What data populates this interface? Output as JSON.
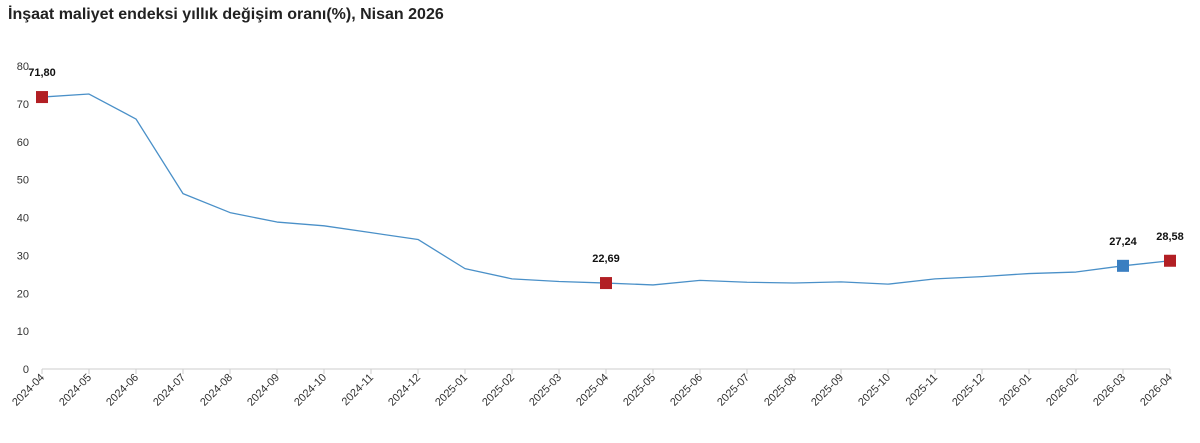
{
  "chart_data": {
    "type": "line",
    "title": "İnşaat maliyet endeksi yıllık değişim oranı(%), Nisan 2026",
    "xlabel": "",
    "ylabel": "",
    "ylim": [
      0,
      80
    ],
    "yticks": [
      "0",
      "10",
      "20",
      "30",
      "40",
      "50",
      "60",
      "70",
      "80"
    ],
    "categories": [
      "2024-04",
      "2024-05",
      "2024-06",
      "2024-07",
      "2024-08",
      "2024-09",
      "2024-10",
      "2024-11",
      "2024-12",
      "2025-01",
      "2025-02",
      "2025-03",
      "2025-04",
      "2025-05",
      "2025-06",
      "2025-07",
      "2025-08",
      "2025-09",
      "2025-10",
      "2025-11",
      "2025-12",
      "2026-01",
      "2026-02",
      "2026-03",
      "2026-04"
    ],
    "series": [
      {
        "values": [
          71.8,
          72.6,
          66.0,
          46.3,
          41.3,
          38.8,
          37.8,
          36.0,
          34.2,
          26.5,
          23.8,
          23.1,
          22.69,
          22.2,
          23.4,
          22.9,
          22.7,
          23.0,
          22.4,
          23.8,
          24.4,
          25.2,
          25.6,
          27.24,
          28.58
        ],
        "color": "#4a90c8"
      }
    ],
    "highlights": [
      {
        "index": 0,
        "label": "71,80",
        "color": "#b21f24"
      },
      {
        "index": 12,
        "label": "22,69",
        "color": "#b21f24"
      },
      {
        "index": 23,
        "label": "27,24",
        "color": "#3a7fc1"
      },
      {
        "index": 24,
        "label": "28,58",
        "color": "#b21f24"
      }
    ],
    "grid": false,
    "legend": "none"
  }
}
